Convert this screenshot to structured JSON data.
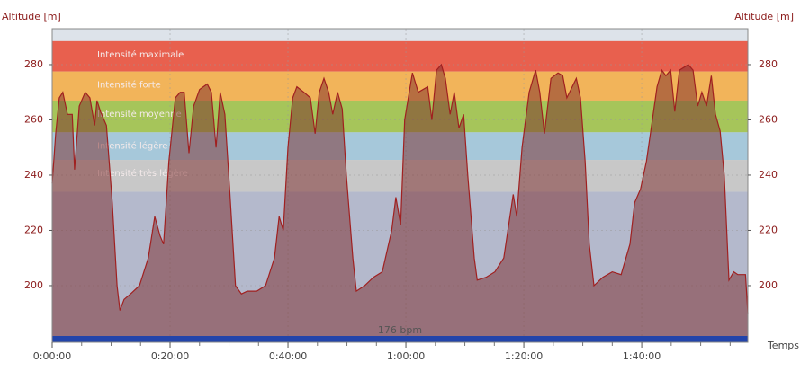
{
  "chart_data": {
    "type": "area",
    "y_axis_title": "Altitude  [m]",
    "y2_axis_title": "Altitude  [m]",
    "x_axis_title": "Temps",
    "xlim": [
      0,
      118
    ],
    "ylim": [
      179.5,
      293
    ],
    "y2lim": [
      179.5,
      293
    ],
    "xticks": [
      {
        "value": 0,
        "label": "0:00:00"
      },
      {
        "value": 20,
        "label": "0:20:00"
      },
      {
        "value": 40,
        "label": "0:40:00"
      },
      {
        "value": 60,
        "label": "1:00:00"
      },
      {
        "value": 80,
        "label": "1:20:00"
      },
      {
        "value": 100,
        "label": "1:40:00"
      }
    ],
    "xminorticks": [
      5,
      10,
      15,
      25,
      30,
      35,
      45,
      50,
      55,
      65,
      70,
      75,
      85,
      90,
      95,
      105,
      110,
      115
    ],
    "yticks": [
      200,
      220,
      240,
      260,
      280
    ],
    "y2ticks": [
      200,
      220,
      240,
      260,
      280
    ],
    "grid": true,
    "zones": [
      {
        "name": "Intensité maximale",
        "from": 277.5,
        "to": 288.5,
        "color": "#e8604e"
      },
      {
        "name": "Intensité forte",
        "from": 267,
        "to": 277.5,
        "color": "#f2b45a"
      },
      {
        "name": "Intensité moyenne",
        "from": 255.5,
        "to": 267,
        "color": "#a6c55a"
      },
      {
        "name": "Intensité légère",
        "from": 245.5,
        "to": 255.5,
        "color": "#a6c8da"
      },
      {
        "name": "Intensité très légère",
        "from": 234,
        "to": 245.5,
        "color": "#c8c8c8"
      }
    ],
    "baseline_label": "176 bpm",
    "baseline_color": "#2244aa",
    "series": [
      {
        "name": "Altitude",
        "color": "#a02020",
        "x": [
          0,
          0.6,
          1.2,
          1.8,
          2.6,
          3.4,
          3.8,
          4.6,
          5.6,
          6.4,
          7.2,
          7.6,
          8.2,
          9.2,
          10.2,
          11.0,
          11.5,
          12.2,
          13.3,
          14.8,
          16.3,
          17.4,
          18.3,
          18.9,
          19.8,
          20.9,
          21.7,
          22.4,
          23.2,
          24.0,
          25.0,
          26.3,
          27.0,
          27.8,
          28.5,
          29.3,
          30.1,
          31.1,
          32.1,
          33.1,
          34.7,
          36.2,
          37.7,
          38.5,
          39.2,
          40.0,
          40.8,
          41.5,
          42.7,
          43.8,
          44.6,
          45.3,
          46.1,
          46.9,
          47.6,
          48.4,
          49.2,
          49.9,
          51.0,
          51.6,
          53.0,
          54.5,
          56.0,
          57.6,
          58.3,
          59.1,
          59.8,
          61.1,
          62.1,
          63.7,
          64.4,
          65.2,
          66.0,
          66.7,
          67.5,
          68.2,
          69.0,
          69.8,
          70.5,
          71.6,
          72.1,
          73.6,
          75.1,
          76.6,
          78.2,
          78.8,
          79.7,
          80.9,
          82.0,
          82.7,
          83.5,
          84.6,
          85.8,
          86.6,
          87.3,
          88.9,
          89.6,
          90.4,
          91.1,
          91.9,
          93.4,
          95.0,
          96.5,
          98.0,
          98.8,
          99.8,
          100.8,
          101.8,
          102.6,
          103.4,
          104.1,
          104.9,
          105.6,
          106.4,
          107.9,
          108.7,
          109.5,
          110.2,
          111.0,
          111.8,
          112.5,
          113.3,
          114.0,
          114.8,
          115.6,
          116.3,
          117.6,
          118.0
        ],
        "values": [
          237,
          255,
          268,
          270,
          262,
          262,
          242,
          265,
          270,
          268,
          258,
          267,
          263,
          258,
          230,
          200,
          191,
          195,
          197,
          200,
          210,
          225,
          218,
          215,
          245,
          268,
          270,
          270,
          248,
          265,
          271,
          273,
          270,
          250,
          270,
          262,
          235,
          200,
          197,
          198,
          198,
          200,
          210,
          225,
          220,
          250,
          268,
          272,
          270,
          268,
          255,
          270,
          275,
          270,
          262,
          270,
          264,
          240,
          210,
          198,
          200,
          203,
          205,
          220,
          232,
          222,
          260,
          277,
          270,
          272,
          260,
          278,
          280,
          275,
          262,
          270,
          257,
          262,
          240,
          210,
          202,
          203,
          205,
          210,
          233,
          225,
          250,
          270,
          278,
          270,
          255,
          275,
          277,
          276,
          268,
          275,
          268,
          245,
          215,
          200,
          203,
          205,
          204,
          215,
          230,
          235,
          245,
          260,
          272,
          278,
          276,
          278,
          263,
          278,
          280,
          278,
          265,
          270,
          265,
          276,
          262,
          256,
          240,
          202,
          205,
          204,
          204,
          190
        ]
      }
    ]
  }
}
